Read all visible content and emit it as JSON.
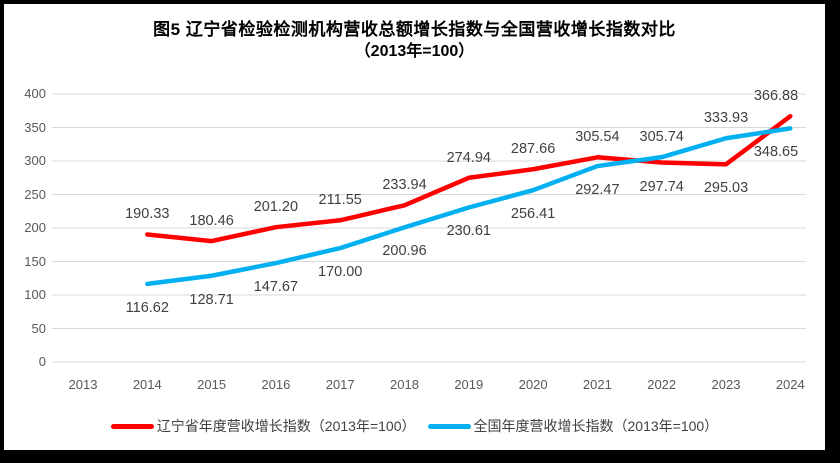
{
  "title": {
    "line1": "图5  辽宁省检验检测机构营收总额增长指数与全国营收增长指数对比",
    "line2": "（2013年=100）"
  },
  "chart_data": {
    "type": "line",
    "title": "图5 辽宁省检验检测机构营收总额增长指数与全国营收增长指数对比",
    "subtitle": "（2013年=100）",
    "categories": [
      "2013",
      "2014",
      "2015",
      "2016",
      "2017",
      "2018",
      "2019",
      "2020",
      "2021",
      "2022",
      "2023",
      "2024"
    ],
    "ylim": [
      0,
      400
    ],
    "yticks": [
      0,
      50,
      100,
      150,
      200,
      250,
      300,
      350,
      400
    ],
    "grid": true,
    "legend_position": "bottom",
    "series": [
      {
        "name": "辽宁省年度营收增长指数（2013年=100）",
        "color": "#FF0000",
        "values": [
          null,
          190.33,
          180.46,
          201.2,
          211.55,
          233.94,
          274.94,
          287.66,
          305.54,
          297.74,
          295.03,
          366.88
        ],
        "labels": [
          null,
          "190.33",
          "180.46",
          "201.20",
          "211.55",
          "233.94",
          "274.94",
          "287.66",
          "305.54",
          "297.74",
          "295.03",
          "366.88"
        ],
        "label_pos": [
          null,
          "above",
          "above",
          "above",
          "above",
          "above",
          "above",
          "above",
          "above",
          "below",
          "below",
          "above"
        ]
      },
      {
        "name": "全国年度营收增长指数（2013年=100）",
        "color": "#00B0F0",
        "values": [
          null,
          116.62,
          128.71,
          147.67,
          170.0,
          200.96,
          230.61,
          256.41,
          292.47,
          305.74,
          333.93,
          348.65
        ],
        "labels": [
          null,
          "116.62",
          "128.71",
          "147.67",
          "170.00",
          "200.96",
          "230.61",
          "256.41",
          "292.47",
          "305.74",
          "333.93",
          "348.65"
        ],
        "label_pos": [
          null,
          "below",
          "below",
          "below",
          "below",
          "below",
          "below",
          "below",
          "below",
          "above",
          "above",
          "below"
        ]
      }
    ],
    "colors": {
      "grid": "#D9D9D9",
      "axis_text": "#595959",
      "data_label_text": "#404040",
      "frame_border": "#000000",
      "background": "#FFFFFF"
    }
  }
}
